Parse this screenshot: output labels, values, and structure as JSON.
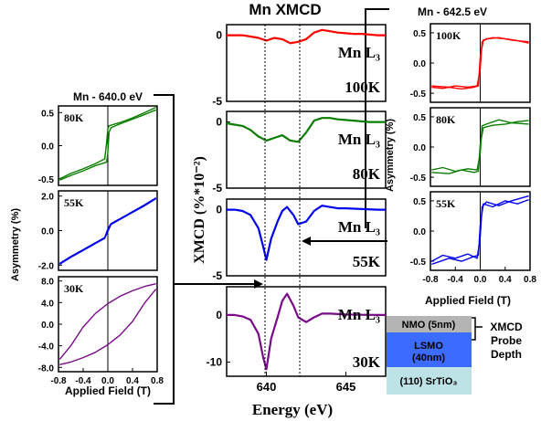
{
  "figure": {
    "center_title": "Mn XMCD",
    "center_ylabel": "XMCD (%*10⁻²)",
    "center_xlabel": "Energy (eV)",
    "left_title": "Mn - 640.0 eV",
    "right_title": "Mn - 642.5 eV",
    "left_ylabel": "Asymmetry (%)",
    "right_ylabel": "Asymmetry (%)",
    "left_xlabel": "Applied Field (T)",
    "right_xlabel": "Applied Field (T)",
    "mn_label": "Mn L₃",
    "stack": {
      "nmo": "NMO (5nm)",
      "lsmo_line1": "LSMO",
      "lsmo_line2": "(40nm)",
      "sto": "(110) SrTiO₃",
      "probe_line1": "XMCD",
      "probe_line2": "Probe",
      "probe_line3": "Depth"
    }
  },
  "colors": {
    "100K": "#ff0000",
    "80K": "#0a7d00",
    "55K": "#0000ee",
    "30K": "#7a0a8a",
    "nmo": "#b4b4b4",
    "lsmo": "#3c6cff",
    "sto": "#bde3e6"
  },
  "chart_data": [
    {
      "id": "center-xmcd-100K",
      "type": "line",
      "temperature_label": "100K",
      "xlim": [
        637.5,
        647.5
      ],
      "ylim": [
        -5,
        0.8
      ],
      "yticks": [
        "0",
        "-5"
      ],
      "x": [
        637.5,
        638,
        638.5,
        639,
        639.5,
        640,
        640.5,
        641,
        641.5,
        642,
        642.5,
        643,
        643.5,
        644,
        644.5,
        645,
        645.5,
        646,
        646.5,
        647,
        647.5
      ],
      "values": [
        0.0,
        0.0,
        0.0,
        -0.1,
        -0.2,
        -0.4,
        -0.2,
        -0.3,
        -0.6,
        -0.5,
        -0.3,
        0.2,
        0.4,
        0.3,
        0.2,
        0.15,
        0.1,
        0.1,
        0.05,
        0.0,
        0.0
      ]
    },
    {
      "id": "center-xmcd-80K",
      "type": "line",
      "temperature_label": "80K",
      "xlim": [
        637.5,
        647.5
      ],
      "ylim": [
        -5,
        0.8
      ],
      "yticks": [
        "0",
        "-5"
      ],
      "x": [
        637.5,
        638,
        638.5,
        639,
        639.5,
        640,
        640.5,
        641,
        641.5,
        642,
        642.5,
        643,
        643.5,
        644,
        644.5,
        645,
        645.5,
        646,
        646.5,
        647,
        647.5
      ],
      "values": [
        -0.1,
        -0.2,
        -0.3,
        -0.6,
        -1.1,
        -1.4,
        -1.2,
        -1.0,
        -1.4,
        -1.5,
        -0.8,
        0.1,
        0.3,
        0.3,
        0.2,
        0.15,
        0.1,
        0.05,
        0.0,
        0.0,
        0.0
      ]
    },
    {
      "id": "center-xmcd-55K",
      "type": "line",
      "temperature_label": "55K",
      "xlim": [
        637.5,
        647.5
      ],
      "ylim": [
        -5,
        0.8
      ],
      "yticks": [
        "0",
        "-5"
      ],
      "x": [
        637.5,
        638,
        638.5,
        639,
        639.5,
        639.8,
        640,
        640.3,
        640.7,
        641,
        641.3,
        641.7,
        642,
        642.5,
        643,
        643.5,
        644,
        644.5,
        645,
        646,
        647,
        647.5
      ],
      "values": [
        0.0,
        0.0,
        -0.1,
        -0.4,
        -1.4,
        -2.8,
        -3.8,
        -2.2,
        -0.9,
        -0.1,
        0.2,
        -0.4,
        -1.1,
        -0.9,
        -0.1,
        0.3,
        0.2,
        0.1,
        0.1,
        0.05,
        0.0,
        0.0
      ]
    },
    {
      "id": "center-xmcd-30K",
      "type": "line",
      "temperature_label": "30K",
      "xlim": [
        637.5,
        647.5
      ],
      "ylim": [
        -13,
        6
      ],
      "yticks": [
        "0",
        "-10"
      ],
      "x": [
        637.5,
        638,
        638.5,
        639,
        639.5,
        639.8,
        640,
        640.3,
        640.7,
        641,
        641.3,
        641.7,
        642,
        642.5,
        643,
        643.5,
        644,
        644.5,
        645,
        646,
        647,
        647.5
      ],
      "values": [
        0.0,
        0.0,
        -0.3,
        -1.0,
        -4.0,
        -9.0,
        -11.5,
        -5.0,
        -0.5,
        3.0,
        4.5,
        2.0,
        -0.5,
        -1.5,
        -0.5,
        0.3,
        0.3,
        0.2,
        0.1,
        0.05,
        0.0,
        0.0
      ]
    },
    {
      "id": "left-hysteresis-80K",
      "type": "line",
      "temperature_label": "80K",
      "xlim": [
        -0.8,
        0.8
      ],
      "ylim": [
        -0.6,
        0.6
      ],
      "yticks": [
        "0.5",
        "0.0",
        "-0.5"
      ],
      "series": [
        {
          "x": [
            -0.78,
            -0.6,
            -0.4,
            -0.2,
            -0.05,
            -0.02,
            0.0,
            0.02,
            0.2,
            0.4,
            0.6,
            0.78
          ],
          "values": [
            -0.5,
            -0.42,
            -0.35,
            -0.27,
            -0.2,
            0.05,
            0.25,
            0.3,
            0.35,
            0.42,
            0.5,
            0.58
          ]
        },
        {
          "x": [
            -0.78,
            -0.6,
            -0.4,
            -0.2,
            -0.02,
            0.0,
            0.02,
            0.05,
            0.2,
            0.4,
            0.6,
            0.78
          ],
          "values": [
            -0.52,
            -0.45,
            -0.38,
            -0.3,
            -0.25,
            -0.1,
            0.2,
            0.27,
            0.33,
            0.4,
            0.47,
            0.54
          ]
        }
      ]
    },
    {
      "id": "left-hysteresis-55K",
      "type": "line",
      "temperature_label": "55K",
      "xlim": [
        -0.8,
        0.8
      ],
      "ylim": [
        -2.3,
        2.3
      ],
      "yticks": [
        "2.0",
        "0.0",
        "-2.0"
      ],
      "series": [
        {
          "x": [
            -0.78,
            -0.6,
            -0.4,
            -0.2,
            -0.05,
            0.0,
            0.05,
            0.2,
            0.4,
            0.6,
            0.78
          ],
          "values": [
            -1.9,
            -1.5,
            -1.1,
            -0.7,
            -0.4,
            0.1,
            0.4,
            0.7,
            1.1,
            1.5,
            1.9
          ]
        },
        {
          "x": [
            -0.78,
            -0.6,
            -0.4,
            -0.2,
            -0.05,
            0.0,
            0.05,
            0.2,
            0.4,
            0.6,
            0.78
          ],
          "values": [
            -1.95,
            -1.55,
            -1.15,
            -0.75,
            -0.45,
            -0.05,
            0.35,
            0.65,
            1.05,
            1.45,
            1.85
          ]
        }
      ]
    },
    {
      "id": "left-hysteresis-30K",
      "type": "line",
      "temperature_label": "30K",
      "xlim": [
        -0.8,
        0.8
      ],
      "ylim": [
        -8.8,
        8.8
      ],
      "yticks": [
        "8.0",
        "4.0",
        "0.0",
        "-4.0",
        "-8.0"
      ],
      "xticks": [
        "-0.8",
        "-0.4",
        "0.0",
        "0.4",
        "0.8"
      ],
      "series": [
        {
          "x": [
            -0.78,
            -0.6,
            -0.4,
            -0.2,
            0.0,
            0.2,
            0.4,
            0.6,
            0.78
          ],
          "values": [
            -6.5,
            -4.0,
            -0.5,
            2.0,
            3.8,
            5.2,
            6.2,
            7.0,
            7.5
          ]
        },
        {
          "x": [
            -0.78,
            -0.6,
            -0.4,
            -0.2,
            0.0,
            0.2,
            0.4,
            0.6,
            0.78
          ],
          "values": [
            -7.5,
            -7.0,
            -6.2,
            -5.2,
            -3.8,
            -2.0,
            0.5,
            4.0,
            6.5
          ]
        }
      ]
    },
    {
      "id": "right-hysteresis-100K",
      "type": "line",
      "temperature_label": "100K",
      "xlim": [
        -0.8,
        0.8
      ],
      "ylim": [
        -0.65,
        0.65
      ],
      "yticks": [
        "0.5",
        "0.0",
        "-0.5"
      ],
      "series": [
        {
          "x": [
            -0.78,
            -0.6,
            -0.4,
            -0.2,
            -0.05,
            0.0,
            0.03,
            0.1,
            0.3,
            0.5,
            0.78
          ],
          "values": [
            -0.4,
            -0.42,
            -0.38,
            -0.4,
            -0.38,
            -0.1,
            0.35,
            0.4,
            0.42,
            0.38,
            0.35
          ]
        },
        {
          "x": [
            -0.78,
            -0.5,
            -0.3,
            -0.1,
            -0.03,
            0.0,
            0.05,
            0.2,
            0.4,
            0.6,
            0.78
          ],
          "values": [
            -0.38,
            -0.4,
            -0.43,
            -0.4,
            -0.38,
            0.1,
            0.38,
            0.42,
            0.4,
            0.37,
            0.33
          ]
        }
      ]
    },
    {
      "id": "right-hysteresis-80K",
      "type": "line",
      "temperature_label": "80K",
      "xlim": [
        -0.8,
        0.8
      ],
      "ylim": [
        -0.65,
        0.65
      ],
      "yticks": [
        "0.5",
        "0.0",
        "-0.5"
      ],
      "series": [
        {
          "x": [
            -0.78,
            -0.6,
            -0.4,
            -0.2,
            -0.05,
            0.0,
            0.03,
            0.1,
            0.3,
            0.5,
            0.78
          ],
          "values": [
            -0.38,
            -0.34,
            -0.4,
            -0.36,
            -0.38,
            -0.1,
            0.35,
            0.38,
            0.45,
            0.4,
            0.38
          ]
        },
        {
          "x": [
            -0.78,
            -0.5,
            -0.3,
            -0.1,
            -0.03,
            0.0,
            0.05,
            0.2,
            0.4,
            0.6,
            0.78
          ],
          "values": [
            -0.42,
            -0.44,
            -0.38,
            -0.42,
            -0.4,
            0.05,
            0.32,
            0.36,
            0.38,
            0.42,
            0.44
          ]
        }
      ]
    },
    {
      "id": "right-hysteresis-55K",
      "type": "line",
      "temperature_label": "55K",
      "xlim": [
        -0.8,
        0.8
      ],
      "ylim": [
        -0.65,
        0.65
      ],
      "yticks": [
        "0.5",
        "0.0",
        "-0.5"
      ],
      "xticks": [
        "-0.8",
        "-0.4",
        "0.0",
        "0.4",
        "0.8"
      ],
      "series": [
        {
          "x": [
            -0.78,
            -0.6,
            -0.4,
            -0.2,
            -0.05,
            0.0,
            0.03,
            0.1,
            0.3,
            0.5,
            0.78
          ],
          "values": [
            -0.5,
            -0.4,
            -0.45,
            -0.38,
            -0.45,
            -0.1,
            0.4,
            0.48,
            0.42,
            0.5,
            0.58
          ]
        },
        {
          "x": [
            -0.78,
            -0.5,
            -0.3,
            -0.1,
            -0.03,
            0.0,
            0.05,
            0.2,
            0.4,
            0.6,
            0.78
          ],
          "values": [
            -0.55,
            -0.45,
            -0.5,
            -0.42,
            -0.4,
            0.1,
            0.45,
            0.4,
            0.5,
            0.45,
            0.52
          ]
        }
      ]
    }
  ]
}
